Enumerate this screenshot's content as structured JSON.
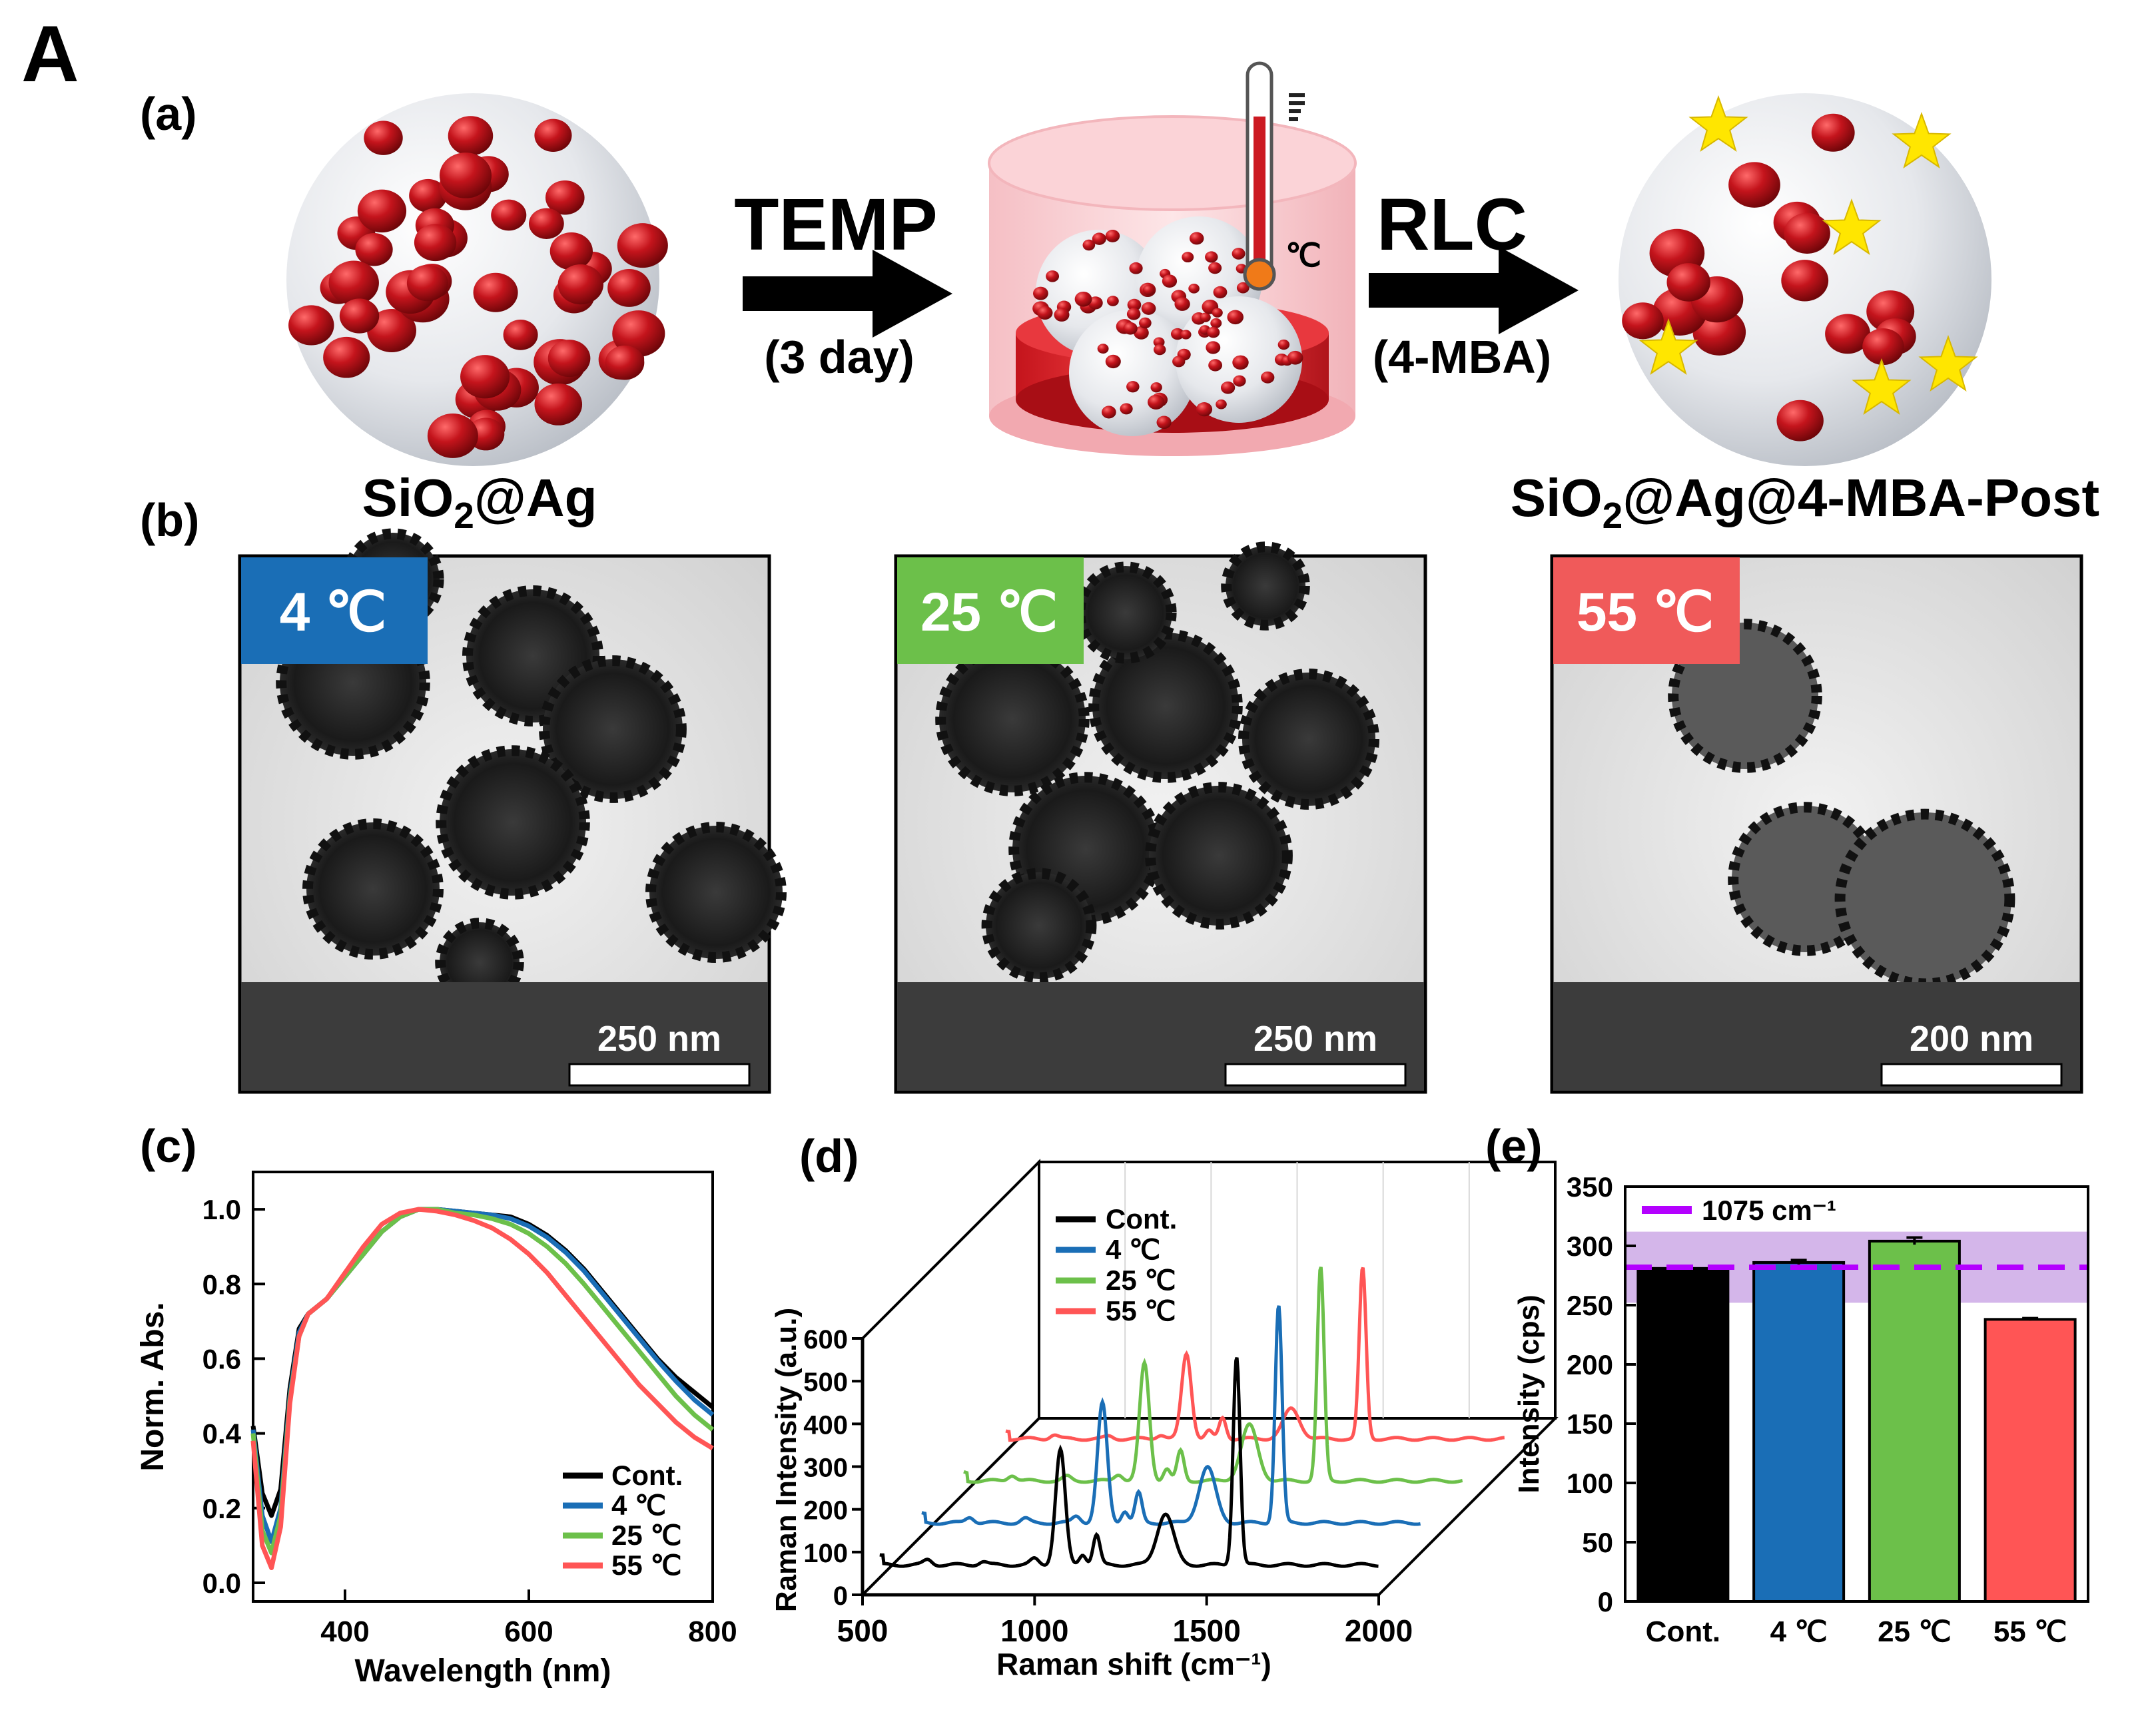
{
  "figure": {
    "letter": "A",
    "panel_labels": [
      "(a)",
      "(b)",
      "(c)",
      "(d)",
      "(e)"
    ]
  },
  "scheme": {
    "step1_label": "TEMP",
    "step1_sub": "(3 day)",
    "step2_label": "RLC",
    "step2_sub": "(4-MBA)",
    "thermo_unit": "℃",
    "left_particle": {
      "main": "SiO",
      "sub": "2",
      "rest": "@Ag"
    },
    "right_particle": {
      "main": "SiO",
      "sub": "2",
      "rest": "@Ag@4-MBA-Post"
    }
  },
  "tem": [
    {
      "temp": "4 ℃",
      "scale": "250 nm",
      "color": "#1a6eb6"
    },
    {
      "temp": "25 ℃",
      "scale": "250 nm",
      "color": "#6cc04a"
    },
    {
      "temp": "55 ℃",
      "scale": "200 nm",
      "color": "#f05a5a"
    }
  ],
  "colors": {
    "cont": "#000000",
    "c4": "#1a6eb6",
    "c25": "#6cc04a",
    "c55": "#ff5555",
    "ref": "#b400ff",
    "silver": "#b0141b"
  },
  "chart_data": [
    {
      "type": "line",
      "panel": "(c)",
      "xlabel": "Wavelength (nm)",
      "ylabel": "Norm. Abs.",
      "xlim": [
        300,
        800
      ],
      "ylim": [
        -0.05,
        1.1
      ],
      "xticks": [
        400,
        600,
        800
      ],
      "yticks": [
        "0.0",
        "0.2",
        "0.4",
        "0.6",
        "0.8",
        "1.0"
      ],
      "legend": "bottom-right",
      "series": [
        {
          "name": "Cont.",
          "x": [
            300,
            310,
            320,
            330,
            340,
            350,
            360,
            380,
            400,
            420,
            440,
            460,
            480,
            500,
            520,
            540,
            560,
            580,
            600,
            620,
            640,
            660,
            680,
            700,
            720,
            740,
            760,
            780,
            800
          ],
          "y": [
            0.42,
            0.24,
            0.18,
            0.25,
            0.52,
            0.68,
            0.72,
            0.76,
            0.82,
            0.88,
            0.94,
            0.98,
            1.0,
            1.0,
            0.995,
            0.99,
            0.985,
            0.98,
            0.96,
            0.93,
            0.89,
            0.84,
            0.78,
            0.72,
            0.66,
            0.6,
            0.55,
            0.51,
            0.47
          ]
        },
        {
          "name": "4 ℃",
          "x": [
            300,
            310,
            320,
            330,
            340,
            350,
            360,
            380,
            400,
            420,
            440,
            460,
            480,
            500,
            520,
            540,
            560,
            580,
            600,
            620,
            640,
            660,
            680,
            700,
            720,
            740,
            760,
            780,
            800
          ],
          "y": [
            0.41,
            0.18,
            0.11,
            0.2,
            0.5,
            0.67,
            0.72,
            0.76,
            0.82,
            0.88,
            0.94,
            0.98,
            1.0,
            1.0,
            0.995,
            0.99,
            0.985,
            0.975,
            0.955,
            0.925,
            0.885,
            0.835,
            0.775,
            0.715,
            0.655,
            0.595,
            0.54,
            0.49,
            0.45
          ]
        },
        {
          "name": "25 ℃",
          "x": [
            300,
            310,
            320,
            330,
            340,
            350,
            360,
            380,
            400,
            420,
            440,
            460,
            480,
            500,
            520,
            540,
            560,
            580,
            600,
            620,
            640,
            660,
            680,
            700,
            720,
            740,
            760,
            780,
            800
          ],
          "y": [
            0.4,
            0.14,
            0.08,
            0.18,
            0.49,
            0.66,
            0.72,
            0.76,
            0.82,
            0.88,
            0.94,
            0.98,
            1.0,
            1.0,
            0.99,
            0.985,
            0.975,
            0.96,
            0.935,
            0.9,
            0.855,
            0.8,
            0.74,
            0.68,
            0.62,
            0.56,
            0.5,
            0.45,
            0.41
          ]
        },
        {
          "name": "55 ℃",
          "x": [
            300,
            310,
            320,
            330,
            340,
            350,
            360,
            380,
            400,
            420,
            440,
            460,
            480,
            500,
            520,
            540,
            560,
            580,
            600,
            620,
            640,
            660,
            680,
            700,
            720,
            740,
            760,
            780,
            800
          ],
          "y": [
            0.38,
            0.1,
            0.04,
            0.15,
            0.48,
            0.66,
            0.72,
            0.76,
            0.83,
            0.9,
            0.96,
            0.99,
            1.0,
            0.995,
            0.985,
            0.97,
            0.95,
            0.92,
            0.88,
            0.83,
            0.77,
            0.71,
            0.65,
            0.59,
            0.53,
            0.48,
            0.43,
            0.39,
            0.36
          ]
        }
      ]
    },
    {
      "type": "line",
      "panel": "(d)",
      "projection": "3d-waterfall",
      "xlabel": "Raman shift (cm⁻¹)",
      "ylabel": "Raman Intensity (a.u.)",
      "xlim": [
        500,
        2000
      ],
      "ylim": [
        0,
        600
      ],
      "xticks": [
        500,
        1000,
        1500,
        2000
      ],
      "yticks": [
        0,
        100,
        200,
        300,
        400,
        500,
        600
      ],
      "legend": "top-left",
      "peak_positions": [
        525,
        690,
        850,
        1000,
        1075,
        1140,
        1180,
        1380,
        1587
      ],
      "series": [
        {
          "name": "Cont.",
          "baseline": 70,
          "peak_heights": [
            20,
            12,
            8,
            14,
            270,
            25,
            70,
            120,
            490
          ]
        },
        {
          "name": "4 ℃",
          "baseline": 70,
          "peak_heights": [
            20,
            14,
            10,
            16,
            280,
            28,
            70,
            130,
            510
          ]
        },
        {
          "name": "25 ℃",
          "baseline": 70,
          "peak_heights": [
            20,
            14,
            10,
            16,
            275,
            28,
            70,
            130,
            500
          ]
        },
        {
          "name": "55 ℃",
          "baseline": 70,
          "peak_heights": [
            18,
            10,
            6,
            10,
            200,
            18,
            50,
            70,
            400
          ]
        }
      ]
    },
    {
      "type": "bar",
      "panel": "(e)",
      "categories": [
        "Cont.",
        "4 ℃",
        "25 ℃",
        "55 ℃"
      ],
      "values": [
        281,
        286,
        304,
        238
      ],
      "errors": [
        2,
        2,
        3,
        1
      ],
      "xlabel": "",
      "ylabel": "Intensity (cps)",
      "ylim": [
        0,
        350
      ],
      "yticks": [
        0,
        50,
        100,
        150,
        200,
        250,
        300,
        350
      ],
      "reference_line": {
        "label": "1075 cm⁻¹",
        "value": 282,
        "band": [
          252,
          312
        ]
      },
      "legend": "top-left"
    }
  ]
}
